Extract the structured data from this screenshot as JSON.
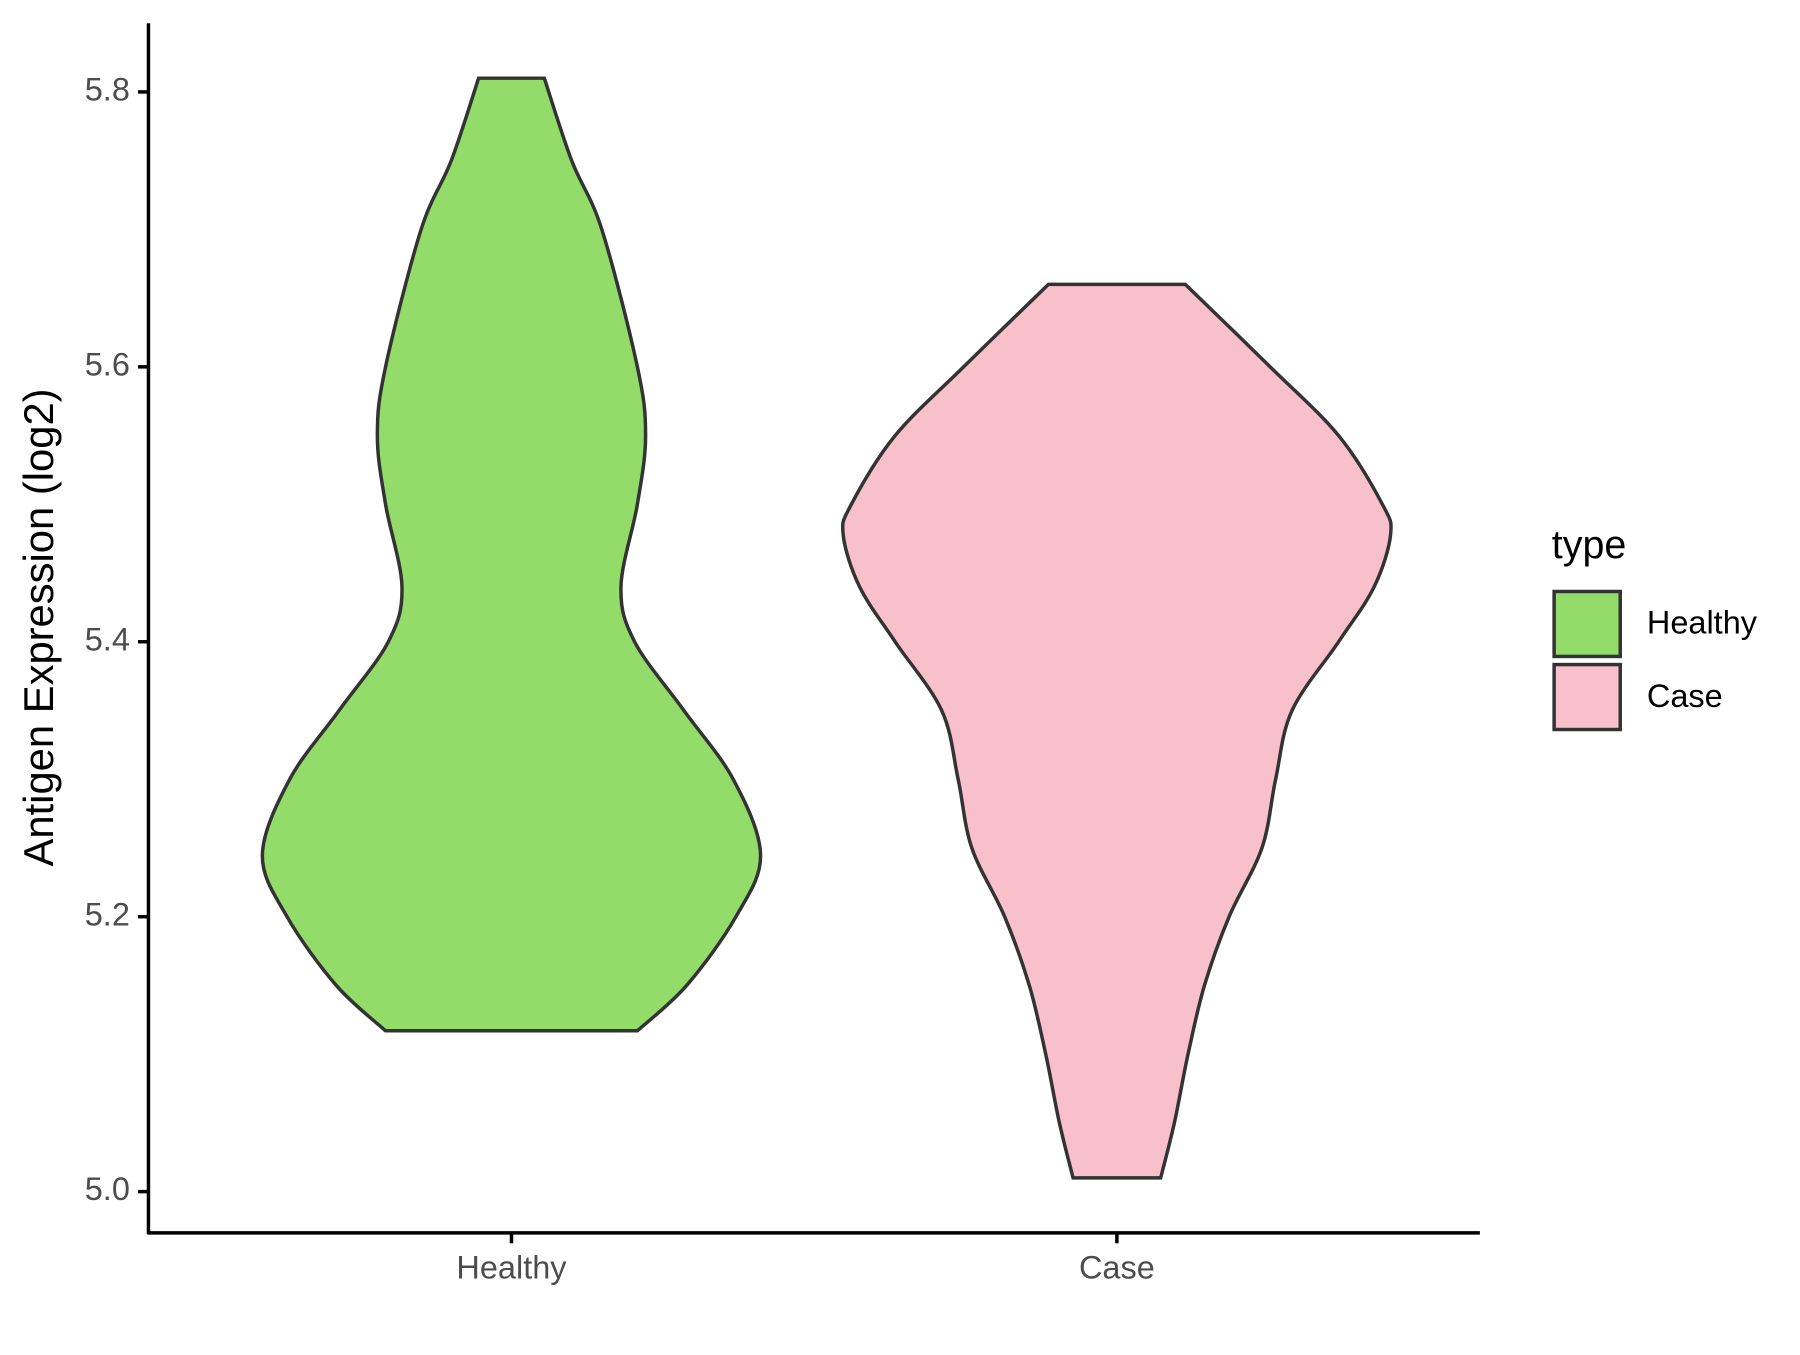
{
  "chart_data": {
    "type": "violin",
    "y_label": "Antigen Expression (log2)",
    "categories": [
      "Healthy",
      "Case"
    ],
    "legend_title": "type",
    "legend": "right",
    "ylim": [
      4.97,
      5.85
    ],
    "yticks": [
      {
        "value": 5,
        "label": "5.0"
      },
      5.2,
      5.4,
      5.6,
      5.8
    ],
    "series": [
      {
        "name": "Healthy",
        "color": "#93dc6a",
        "y": [
          5.81,
          5.75,
          5.7,
          5.6,
          5.55,
          5.5,
          5.44,
          5.4,
          5.35,
          5.3,
          5.245,
          5.2,
          5.15,
          5.117
        ],
        "width": [
          0.12,
          0.22,
          0.33,
          0.46,
          0.49,
          0.46,
          0.4,
          0.45,
          0.63,
          0.81,
          0.91,
          0.82,
          0.64,
          0.46
        ]
      },
      {
        "name": "Case",
        "color": "#f7c0cb",
        "y": [
          5.66,
          5.6,
          5.55,
          5.5,
          5.478,
          5.44,
          5.4,
          5.35,
          5.3,
          5.25,
          5.2,
          5.15,
          5.1,
          5.05,
          5.01
        ],
        "width": [
          0.25,
          0.56,
          0.81,
          0.97,
          1.0,
          0.94,
          0.81,
          0.64,
          0.58,
          0.53,
          0.41,
          0.32,
          0.26,
          0.21,
          0.16
        ]
      }
    ]
  }
}
